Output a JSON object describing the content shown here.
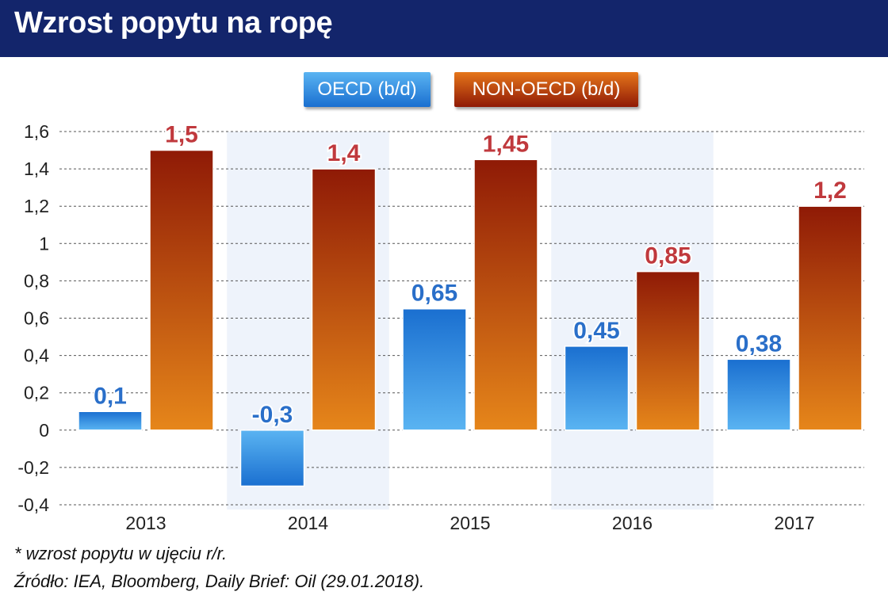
{
  "title": "Wzrost popytu na ropę",
  "footnote": "* wzrost popytu w ujęciu r/r.",
  "source": "Źródło: IEA, Bloomberg, Daily Brief: Oil (29.01.2018).",
  "colors": {
    "header_bg": "#13256b",
    "oecd_top": "#5ab4f2",
    "oecd_bottom": "#1a6fd0",
    "non_oecd_top": "#8f1a06",
    "non_oecd_bottom": "#e6861a",
    "oecd_label": "#2a6fc9",
    "non_oecd_label": "#c0393d",
    "band": "#eef3fb"
  },
  "chart_data": {
    "type": "bar",
    "categories": [
      "2013",
      "2014",
      "2015",
      "2016",
      "2017"
    ],
    "series": [
      {
        "name": "OECD (b/d)",
        "values": [
          0.1,
          -0.3,
          0.65,
          0.45,
          0.38
        ],
        "labels": [
          "0,1",
          "-0,3",
          "0,65",
          "0,45",
          "0,38"
        ]
      },
      {
        "name": "NON-OECD (b/d)",
        "values": [
          1.5,
          1.4,
          1.45,
          0.85,
          1.2
        ],
        "labels": [
          "1,5",
          "1,4",
          "1,45",
          "0,85",
          "1,2"
        ]
      }
    ],
    "yticks": [
      1.6,
      1.4,
      1.2,
      1,
      0.8,
      0.6,
      0.4,
      0.2,
      0,
      -0.2,
      -0.4
    ],
    "ytick_labels": [
      "1,6",
      "1,4",
      "1,2",
      "1",
      "0,8",
      "0,6",
      "0,4",
      "0,2",
      "0",
      "-0,2",
      "-0,4"
    ],
    "ylim": [
      -0.4,
      1.6
    ],
    "grid": true,
    "legend_position": "top-center",
    "xlabel": "",
    "ylabel": ""
  }
}
